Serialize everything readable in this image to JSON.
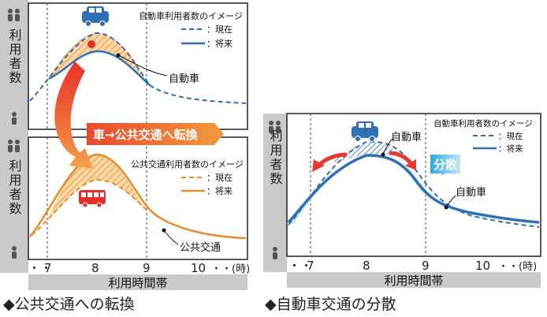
{
  "panel_left": {
    "caption": "◆公共交通への転換",
    "y_axis_label": "利用者数",
    "x_axis_title": "利用時間帯",
    "x_ticks": {
      "dots": "・・",
      "t7": "7",
      "t8": "8",
      "t9": "9",
      "t10": "10",
      "tail": "・・(時)"
    },
    "transition_label": "車→公共交通へ転換",
    "top_chart": {
      "legend_title": "自動車利用者数のイメージ",
      "legend_current": "：現在",
      "legend_future": "：将来",
      "curve_label": "自動車",
      "color": "#2f6fb5"
    },
    "bottom_chart": {
      "legend_title": "公共交通利用者数のイメージ",
      "legend_current": "：現在",
      "legend_future": "：将来",
      "curve_label": "公共交通",
      "color": "#ec8a2a"
    }
  },
  "panel_right": {
    "caption": "◆自動車交通の分散",
    "y_axis_label": "利用者数",
    "x_axis_title": "利用時間帯",
    "x_ticks": {
      "dots": "・・",
      "t7": "7",
      "t8": "8",
      "t9": "9",
      "t10": "10",
      "tail": "・・(時)"
    },
    "legend_title": "自動車利用者数のイメージ",
    "legend_current": "：現在",
    "legend_future": "：将来",
    "curve_label_top": "自動車",
    "curve_label_right": "自動車",
    "spread_label": "分散",
    "color": "#2f6fb5"
  },
  "icons": [
    "people-icon",
    "person-icon",
    "car-icon",
    "bus-icon",
    "red-dot-icon"
  ],
  "colors": {
    "car_blue": "#2f6fb5",
    "transit_orange": "#ec8a2a",
    "arrow_red": "#e53a2f",
    "spread_cyan": "#45b7e3",
    "axis_gray": "#c9cacb"
  }
}
